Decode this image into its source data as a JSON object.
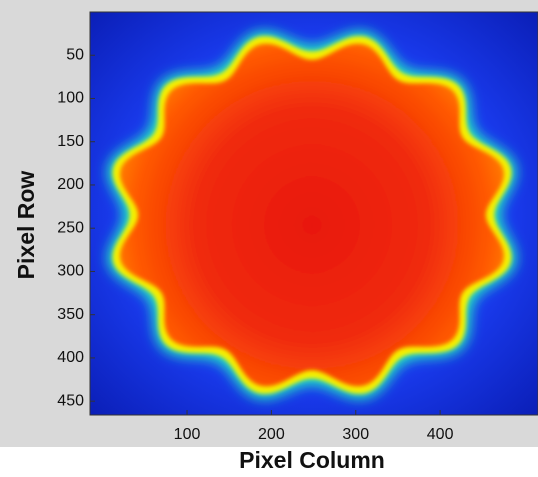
{
  "chart_data": {
    "type": "image",
    "xlabel": "Pixel Column",
    "ylabel": "Pixel Row",
    "xlim": [
      -15,
      516
    ],
    "ylim": [
      0,
      466
    ],
    "xticks": [
      100,
      200,
      300,
      400
    ],
    "yticks": [
      50,
      100,
      150,
      200,
      250,
      300,
      350,
      400,
      450
    ]
  }
}
